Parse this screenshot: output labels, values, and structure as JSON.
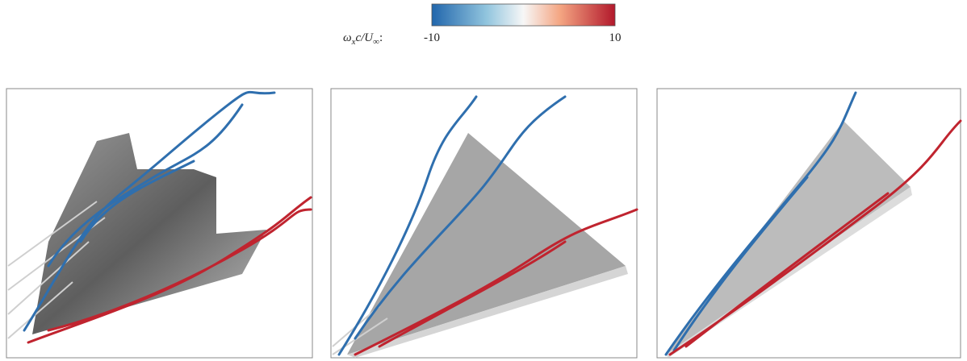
{
  "colorbar": {
    "label_parts": [
      "ω",
      "x",
      "c/U",
      "∞",
      ":"
    ],
    "range": [
      -10,
      10
    ],
    "ticks": [
      -10,
      10
    ]
  }
}
